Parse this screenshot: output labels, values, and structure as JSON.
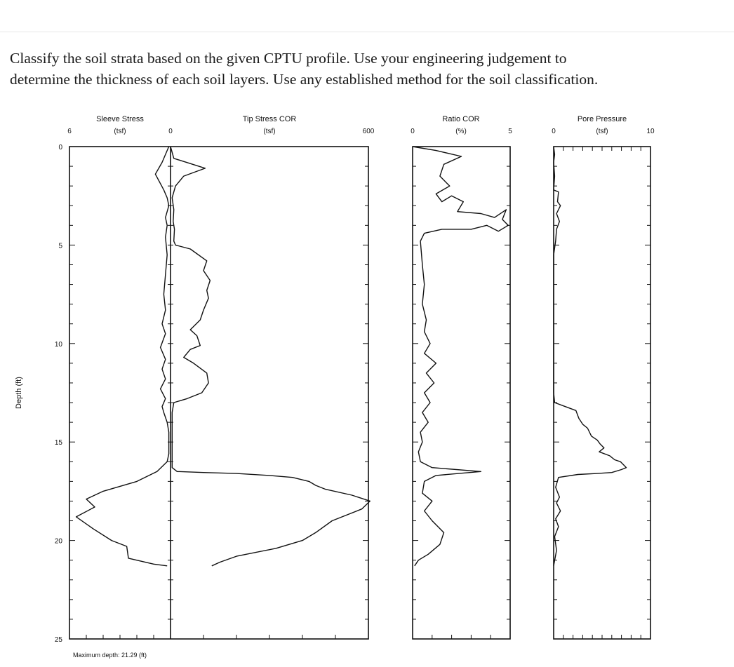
{
  "question": {
    "line1": "Classify the soil strata based on the given CPTU profile. Use your engineering judgement to",
    "line2": "determine the thickness of each soil layers. Use any established method for the soil classification."
  },
  "figure": {
    "y_axis": {
      "label": "Depth (ft)",
      "ticks": [
        "0",
        "5",
        "10",
        "15",
        "20",
        "25"
      ],
      "range": [
        0,
        25
      ]
    },
    "footer": "Maximum depth: 21.29  (ft)"
  },
  "chart_data": [
    {
      "type": "line",
      "title": "Sleeve Stress",
      "unit_label": "(tsf)",
      "x_ticks": [
        "6",
        "0"
      ],
      "xlim": [
        6,
        0
      ],
      "ylim": [
        0,
        25
      ],
      "series": [
        {
          "x": [
            0.1,
            0.5,
            0.9,
            0.4,
            0.2,
            0.1,
            0.3,
            0.2,
            0.3,
            0.2,
            0.3,
            0.4,
            0.3,
            0.5,
            0.3,
            0.6,
            0.3,
            0.5,
            0.3,
            0.6,
            0.3,
            0.5,
            0.4,
            0.2,
            0.1,
            0.1,
            0.1,
            0.2,
            0.8,
            2.0,
            4.0,
            5.0,
            4.5,
            5.6,
            4.6,
            3.5,
            2.6,
            2.5,
            1.0,
            0.2
          ],
          "y": [
            0.0,
            0.8,
            1.4,
            2.2,
            2.6,
            3.0,
            3.6,
            4.0,
            4.6,
            5.5,
            6.5,
            7.5,
            8.3,
            9.0,
            9.5,
            10.2,
            10.8,
            11.3,
            11.8,
            12.3,
            12.8,
            13.2,
            13.5,
            14.0,
            14.5,
            15.0,
            15.6,
            16.0,
            16.5,
            17.0,
            17.5,
            17.9,
            18.3,
            18.8,
            19.4,
            20.0,
            20.3,
            20.9,
            21.2,
            21.29
          ]
        }
      ]
    },
    {
      "type": "line",
      "title": "Tip Stress COR",
      "unit_label": "(tsf)",
      "x_ticks": [
        "600"
      ],
      "xlim": [
        0,
        600
      ],
      "ylim": [
        0,
        25
      ],
      "series": [
        {
          "x": [
            0,
            10,
            105,
            40,
            15,
            5,
            10,
            8,
            12,
            10,
            15,
            60,
            110,
            100,
            120,
            110,
            115,
            100,
            90,
            60,
            80,
            90,
            60,
            40,
            70,
            110,
            115,
            95,
            50,
            10,
            5,
            5,
            5,
            5,
            20,
            100,
            200,
            300,
            370,
            420,
            440,
            470,
            550,
            605,
            580,
            490,
            440,
            400,
            320,
            200,
            150,
            125
          ],
          "y": [
            0.0,
            0.6,
            1.1,
            1.5,
            2.0,
            2.6,
            3.2,
            3.8,
            4.2,
            4.8,
            5.0,
            5.2,
            5.8,
            6.3,
            6.8,
            7.3,
            7.7,
            8.3,
            8.8,
            9.3,
            9.6,
            10.1,
            10.3,
            10.7,
            11.0,
            11.5,
            12.0,
            12.5,
            12.8,
            13.0,
            13.5,
            14.5,
            15.5,
            16.3,
            16.5,
            16.55,
            16.6,
            16.7,
            16.8,
            17.0,
            17.2,
            17.4,
            17.7,
            18.0,
            18.4,
            19.0,
            19.6,
            20.0,
            20.4,
            20.8,
            21.1,
            21.29
          ]
        }
      ]
    },
    {
      "type": "line",
      "title": "Ratio COR",
      "unit_label": "(%)",
      "x_ticks": [
        "0",
        "5"
      ],
      "xlim": [
        0,
        5
      ],
      "ylim": [
        0,
        25
      ],
      "series": [
        {
          "x": [
            0.0,
            1.2,
            2.5,
            1.6,
            1.4,
            1.9,
            1.2,
            1.5,
            2.0,
            2.6,
            2.3,
            3.5,
            4.2,
            4.8,
            4.6,
            4.9,
            4.4,
            3.8,
            3.0,
            1.5,
            0.6,
            0.4,
            0.5,
            0.6,
            0.5,
            0.7,
            0.6,
            0.9,
            0.6,
            1.2,
            0.7,
            1.1,
            0.6,
            0.9,
            0.5,
            0.8,
            0.4,
            0.5,
            0.3,
            0.4,
            1.0,
            3.5,
            1.2,
            0.6,
            0.5,
            1.0,
            0.6,
            1.0,
            1.6,
            1.4,
            0.8,
            0.3,
            0.1
          ],
          "y": [
            0.0,
            0.2,
            0.5,
            0.9,
            1.5,
            2.0,
            2.4,
            2.8,
            2.5,
            2.8,
            3.3,
            3.4,
            3.6,
            3.2,
            3.7,
            4.0,
            4.3,
            4.0,
            4.2,
            4.2,
            4.4,
            4.8,
            6.0,
            7.0,
            8.0,
            8.8,
            9.4,
            10.0,
            10.5,
            11.0,
            11.5,
            12.0,
            12.5,
            13.0,
            13.5,
            14.0,
            14.5,
            15.0,
            15.5,
            16.0,
            16.3,
            16.5,
            16.7,
            17.0,
            17.6,
            18.0,
            18.5,
            19.0,
            19.6,
            20.2,
            20.7,
            21.0,
            21.29
          ]
        }
      ]
    },
    {
      "type": "line",
      "title": "Pore Pressure",
      "unit_label": "(tsf)",
      "x_ticks": [
        "0",
        "10"
      ],
      "xlim": [
        0,
        10
      ],
      "ylim": [
        0,
        25
      ],
      "series": [
        {
          "x": [
            0.0,
            0.1,
            0.0,
            0.1,
            0.0,
            0.5,
            0.4,
            0.7,
            0.3,
            0.6,
            0.3,
            0.2,
            0.0,
            0.0,
            0.0,
            0.0,
            0.1,
            1.2,
            2.3,
            2.6,
            3.0,
            3.5,
            3.9,
            4.5,
            4.8,
            5.2,
            4.7,
            5.8,
            6.3,
            6.9,
            7.5,
            7.0,
            6.0,
            4.5,
            2.5,
            0.5,
            0.2,
            0.6,
            0.3,
            0.7,
            0.2,
            0.5,
            0.1,
            0.3,
            0.0
          ],
          "y": [
            0.0,
            0.4,
            0.8,
            1.5,
            2.2,
            2.3,
            2.8,
            3.0,
            3.4,
            3.8,
            4.2,
            4.8,
            5.5,
            8.0,
            11.0,
            12.5,
            13.0,
            13.2,
            13.4,
            13.8,
            14.1,
            14.3,
            14.7,
            14.9,
            15.1,
            15.3,
            15.5,
            15.7,
            15.9,
            16.0,
            16.3,
            16.4,
            16.55,
            16.6,
            16.65,
            16.8,
            17.3,
            17.8,
            18.1,
            18.5,
            18.9,
            19.3,
            19.8,
            20.5,
            21.29
          ]
        }
      ]
    }
  ]
}
